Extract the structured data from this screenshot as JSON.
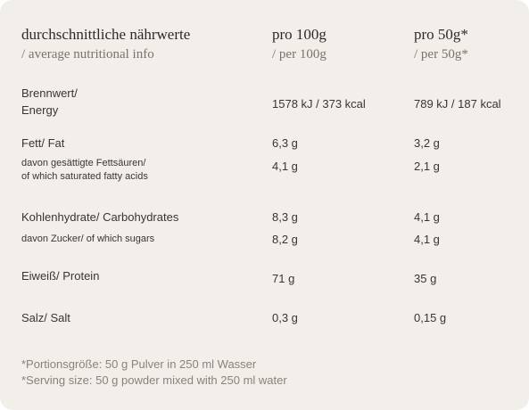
{
  "header": {
    "col0_title": "durchschnittliche nährwerte",
    "col0_sub": "/ average nutritional info",
    "col1_title": "pro 100g",
    "col1_sub": "/ per 100g",
    "col2_title": "pro 50g*",
    "col2_sub": "/ per 50g*"
  },
  "rows": [
    {
      "label_line1": "Brennwert/",
      "label_line2": "Energy",
      "per100": "1578 kJ / 373 kcal",
      "per50": "789 kJ / 187 kcal"
    },
    {
      "label": "Fett/ Fat",
      "per100": "6,3 g",
      "per50": "3,2 g"
    },
    {
      "label_line1": "davon gesättigte Fettsäuren/",
      "label_line2": "of which saturated fatty acids",
      "per100": "4,1 g",
      "per50": "2,1 g"
    },
    {
      "label": "Kohlenhydrate/ Carbohydrates",
      "per100": "8,3 g",
      "per50": "4,1 g"
    },
    {
      "label": "davon Zucker/ of which sugars",
      "per100": "8,2 g",
      "per50": "4,1 g"
    },
    {
      "label": "Eiweiß/ Protein",
      "per100": "71 g",
      "per50": "35 g"
    },
    {
      "label": "Salz/ Salt",
      "per100": "0,3 g",
      "per50": "0,15 g"
    }
  ],
  "footnote": {
    "line1": "*Portionsgröße: 50 g Pulver in 250 ml Wasser",
    "line2": "*Serving size: 50 g powder mixed with 250 ml water"
  },
  "colors": {
    "background": "#f2efea",
    "text": "#3a3430",
    "muted": "#8a827c"
  }
}
